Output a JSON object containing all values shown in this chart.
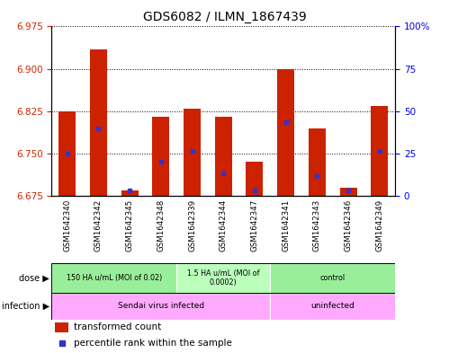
{
  "title": "GDS6082 / ILMN_1867439",
  "samples": [
    "GSM1642340",
    "GSM1642342",
    "GSM1642345",
    "GSM1642348",
    "GSM1642339",
    "GSM1642344",
    "GSM1642347",
    "GSM1642341",
    "GSM1642343",
    "GSM1642346",
    "GSM1642349"
  ],
  "bar_values": [
    6.825,
    6.935,
    6.685,
    6.815,
    6.83,
    6.815,
    6.735,
    6.9,
    6.795,
    6.69,
    6.835
  ],
  "blue_values": [
    6.75,
    6.795,
    6.685,
    6.735,
    6.755,
    6.715,
    6.685,
    6.805,
    6.71,
    6.685,
    6.755
  ],
  "ymin": 6.675,
  "ymax": 6.975,
  "yticks_left": [
    6.675,
    6.75,
    6.825,
    6.9,
    6.975
  ],
  "yticks_right_vals": [
    0,
    25,
    50,
    75,
    100
  ],
  "yticks_right_labels": [
    "0",
    "25",
    "50",
    "75",
    "100%"
  ],
  "bar_color": "#cc2200",
  "blue_color": "#3333cc",
  "bar_width": 0.55,
  "dose_groups": [
    {
      "label": "150 HA u/mL (MOI of 0.02)",
      "start": 0,
      "end": 4,
      "color": "#99ee99"
    },
    {
      "label": "1.5 HA u/mL (MOI of\n0.0002)",
      "start": 4,
      "end": 7,
      "color": "#bbffbb"
    },
    {
      "label": "control",
      "start": 7,
      "end": 11,
      "color": "#99ee99"
    }
  ],
  "infection_groups": [
    {
      "label": "Sendai virus infected",
      "start": 0,
      "end": 7,
      "color": "#ffaaff"
    },
    {
      "label": "uninfected",
      "start": 7,
      "end": 11,
      "color": "#ffaaff"
    }
  ],
  "legend_items": [
    {
      "label": "transformed count",
      "color": "#cc2200",
      "marker": "square"
    },
    {
      "label": "percentile rank within the sample",
      "color": "#3333cc",
      "marker": "square"
    }
  ],
  "tick_color_left": "#cc2200",
  "tick_color_right": "#0000ee",
  "bg_color": "#ffffff",
  "plot_bg": "#ffffff",
  "xtick_area_color": "#d8d8d8"
}
